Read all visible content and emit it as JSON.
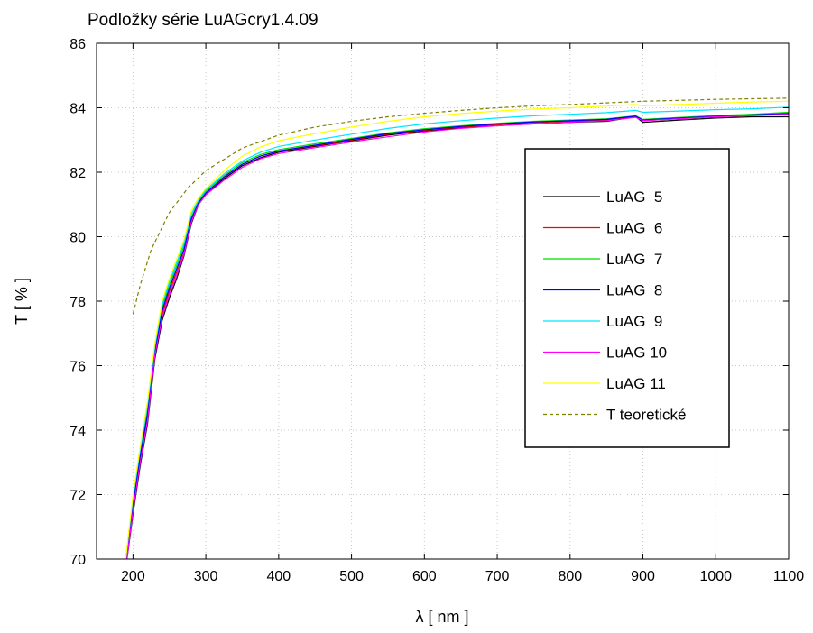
{
  "chart_data": {
    "type": "line",
    "title": "Podložky série LuAGcry1.4.09",
    "xlabel": "λ [ nm ]",
    "ylabel": "T [ % ]",
    "xlim": [
      150,
      1100
    ],
    "ylim": [
      70,
      86
    ],
    "xticks": [
      200,
      300,
      400,
      500,
      600,
      700,
      800,
      900,
      1000,
      1100
    ],
    "yticks": [
      70,
      72,
      74,
      76,
      78,
      80,
      82,
      84,
      86
    ],
    "grid": true,
    "legend_position": "right",
    "series": [
      {
        "name": "LuAG  5",
        "color": "#000000",
        "dash": false,
        "x": [
          190,
          200,
          210,
          220,
          230,
          240,
          250,
          260,
          270,
          280,
          290,
          300,
          325,
          350,
          375,
          400,
          450,
          500,
          550,
          600,
          650,
          700,
          750,
          800,
          850,
          890,
          900,
          950,
          1000,
          1050,
          1100
        ],
        "y": [
          69.7,
          71.4,
          72.9,
          74.2,
          76.2,
          77.4,
          78.1,
          78.7,
          79.4,
          80.4,
          81.0,
          81.3,
          81.8,
          82.2,
          82.45,
          82.62,
          82.8,
          82.98,
          83.15,
          83.28,
          83.38,
          83.45,
          83.5,
          83.55,
          83.58,
          83.72,
          83.55,
          83.62,
          83.68,
          83.72,
          83.72
        ]
      },
      {
        "name": "LuAG  6",
        "color": "#ff0000",
        "dash": false,
        "x": [
          190,
          200,
          210,
          220,
          230,
          240,
          250,
          260,
          270,
          280,
          290,
          300,
          325,
          350,
          375,
          400,
          450,
          500,
          550,
          600,
          650,
          700,
          750,
          800,
          850,
          890,
          900,
          950,
          1000,
          1050,
          1100
        ],
        "y": [
          69.8,
          71.6,
          73.1,
          74.4,
          76.4,
          77.6,
          78.3,
          78.9,
          79.5,
          80.5,
          81.05,
          81.35,
          81.85,
          82.25,
          82.5,
          82.65,
          82.82,
          83.0,
          83.18,
          83.3,
          83.4,
          83.48,
          83.54,
          83.58,
          83.62,
          83.72,
          83.6,
          83.66,
          83.72,
          83.76,
          83.82
        ]
      },
      {
        "name": "LuAG  7",
        "color": "#00dd00",
        "dash": false,
        "x": [
          190,
          200,
          210,
          220,
          230,
          240,
          250,
          260,
          270,
          280,
          290,
          300,
          325,
          350,
          375,
          400,
          450,
          500,
          550,
          600,
          650,
          700,
          750,
          800,
          850,
          890,
          900,
          950,
          1000,
          1050,
          1100
        ],
        "y": [
          69.9,
          71.8,
          73.3,
          74.6,
          76.5,
          77.8,
          78.5,
          79.1,
          79.7,
          80.6,
          81.1,
          81.4,
          81.9,
          82.3,
          82.55,
          82.7,
          82.88,
          83.05,
          83.22,
          83.35,
          83.44,
          83.52,
          83.58,
          83.62,
          83.66,
          83.75,
          83.64,
          83.7,
          83.76,
          83.8,
          83.86
        ]
      },
      {
        "name": "LuAG  8",
        "color": "#0000ff",
        "dash": false,
        "x": [
          190,
          200,
          210,
          220,
          230,
          240,
          250,
          260,
          270,
          280,
          290,
          300,
          325,
          350,
          375,
          400,
          450,
          500,
          550,
          600,
          650,
          700,
          750,
          800,
          850,
          890,
          900,
          950,
          1000,
          1050,
          1100
        ],
        "y": [
          69.8,
          71.7,
          73.2,
          74.5,
          76.4,
          77.7,
          78.4,
          79.0,
          79.6,
          80.55,
          81.05,
          81.35,
          81.85,
          82.25,
          82.5,
          82.66,
          82.84,
          83.02,
          83.2,
          83.32,
          83.42,
          83.5,
          83.56,
          83.6,
          83.64,
          83.74,
          83.62,
          83.68,
          83.74,
          83.78,
          83.82
        ]
      },
      {
        "name": "LuAG  9",
        "color": "#00e5ff",
        "dash": false,
        "x": [
          190,
          200,
          210,
          220,
          230,
          240,
          250,
          260,
          270,
          280,
          290,
          300,
          325,
          350,
          375,
          400,
          450,
          500,
          550,
          600,
          650,
          700,
          750,
          800,
          850,
          890,
          900,
          950,
          1000,
          1050,
          1100
        ],
        "y": [
          70.0,
          71.9,
          73.4,
          74.8,
          76.6,
          77.9,
          78.6,
          79.2,
          79.8,
          80.7,
          81.15,
          81.45,
          81.95,
          82.35,
          82.62,
          82.8,
          83.0,
          83.18,
          83.36,
          83.5,
          83.6,
          83.68,
          83.75,
          83.8,
          83.85,
          83.92,
          83.86,
          83.9,
          83.94,
          83.97,
          84.02
        ]
      },
      {
        "name": "LuAG 10",
        "color": "#ff00ff",
        "dash": false,
        "x": [
          190,
          200,
          210,
          220,
          230,
          240,
          250,
          260,
          270,
          280,
          290,
          300,
          325,
          350,
          375,
          400,
          450,
          500,
          550,
          600,
          650,
          700,
          750,
          800,
          850,
          890,
          900,
          950,
          1000,
          1050,
          1100
        ],
        "y": [
          69.7,
          71.5,
          73.0,
          74.3,
          76.3,
          77.5,
          78.2,
          78.8,
          79.45,
          80.45,
          81.0,
          81.3,
          81.75,
          82.15,
          82.42,
          82.58,
          82.76,
          82.94,
          83.1,
          83.25,
          83.36,
          83.44,
          83.5,
          83.55,
          83.6,
          83.7,
          83.6,
          83.66,
          83.72,
          83.76,
          83.8
        ]
      },
      {
        "name": "LuAG 11",
        "color": "#ffff00",
        "dash": false,
        "x": [
          190,
          200,
          210,
          220,
          230,
          240,
          250,
          260,
          270,
          280,
          290,
          300,
          325,
          350,
          375,
          400,
          450,
          500,
          550,
          600,
          650,
          700,
          750,
          800,
          850,
          890,
          900,
          950,
          1000,
          1050,
          1100
        ],
        "y": [
          70.0,
          72.0,
          73.5,
          74.9,
          76.7,
          78.0,
          78.7,
          79.3,
          79.9,
          80.8,
          81.2,
          81.5,
          82.05,
          82.5,
          82.78,
          82.98,
          83.2,
          83.4,
          83.58,
          83.72,
          83.82,
          83.9,
          83.96,
          84.0,
          84.05,
          84.1,
          84.06,
          84.1,
          84.14,
          84.18,
          84.2
        ]
      },
      {
        "name": "T teoretické",
        "color": "#808000",
        "dash": true,
        "x": [
          200,
          210,
          225,
          250,
          275,
          300,
          350,
          400,
          450,
          500,
          550,
          600,
          650,
          700,
          750,
          800,
          850,
          900,
          950,
          1000,
          1050,
          1100
        ],
        "y": [
          77.6,
          78.5,
          79.6,
          80.75,
          81.5,
          82.05,
          82.75,
          83.15,
          83.4,
          83.58,
          83.72,
          83.83,
          83.92,
          84.0,
          84.06,
          84.1,
          84.15,
          84.2,
          84.23,
          84.26,
          84.28,
          84.3
        ]
      }
    ]
  }
}
